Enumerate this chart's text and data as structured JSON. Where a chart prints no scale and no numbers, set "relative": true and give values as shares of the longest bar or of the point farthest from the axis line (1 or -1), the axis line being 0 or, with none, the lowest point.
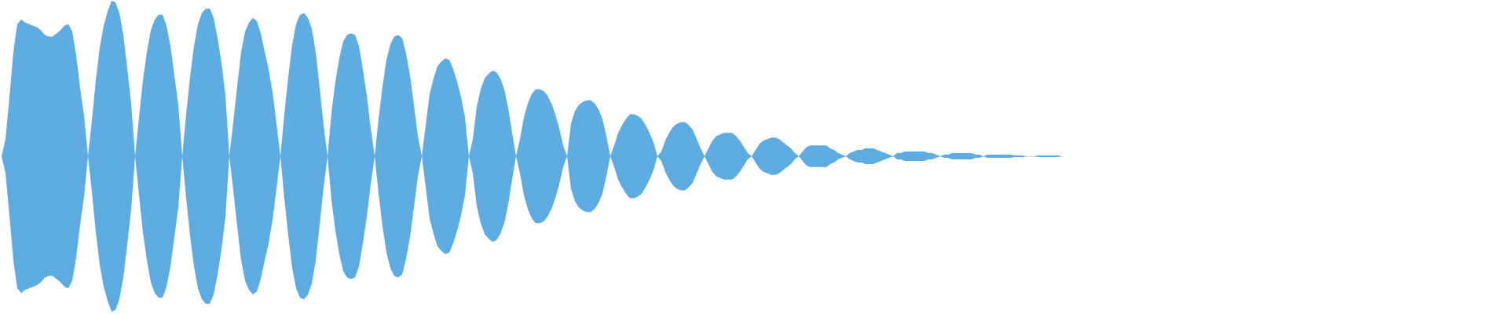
{
  "chart_data": {
    "type": "area",
    "relative": true,
    "categories": [
      null,
      null,
      null,
      null,
      null,
      null,
      null,
      null,
      null,
      null,
      null,
      null,
      null,
      null,
      null,
      null,
      null,
      null,
      null,
      null,
      null,
      null,
      null,
      null,
      null,
      null,
      null,
      null,
      null,
      null,
      null,
      null,
      null,
      null,
      null,
      null,
      null,
      null,
      null,
      null,
      null,
      null,
      null,
      null,
      null,
      null,
      null,
      null,
      null,
      null,
      null,
      null,
      null,
      null,
      null,
      null,
      null,
      null,
      null,
      null,
      null,
      null,
      null,
      null,
      null,
      null,
      null,
      null,
      null,
      null,
      null,
      null,
      null,
      null,
      null,
      null,
      null,
      null,
      null,
      null,
      null,
      null,
      null,
      null,
      null,
      null,
      null,
      null,
      null,
      null,
      null,
      null,
      null,
      null,
      null,
      null,
      null,
      null,
      null,
      null,
      null,
      null,
      null,
      null,
      null,
      null,
      null,
      null,
      null,
      null,
      null,
      null,
      null,
      null,
      null,
      null,
      null,
      null,
      null,
      null,
      null,
      null,
      null,
      null,
      null,
      null,
      null,
      null,
      null,
      null,
      null,
      null,
      null,
      null,
      null,
      null,
      null,
      null,
      null,
      null,
      null,
      null,
      null,
      null,
      null,
      null,
      null,
      null,
      null,
      null,
      null,
      null,
      null,
      null,
      null,
      null,
      null,
      null,
      null,
      null,
      null,
      null,
      null,
      null,
      null,
      null,
      null,
      null,
      null,
      null,
      null,
      null,
      null,
      null,
      null,
      null,
      null,
      null,
      null,
      null,
      null,
      null,
      null,
      null,
      null,
      null,
      null,
      null,
      null,
      null,
      null,
      null,
      null,
      null,
      null,
      null,
      null,
      null,
      null,
      null,
      null,
      null,
      null,
      null,
      null,
      null,
      null,
      null,
      null,
      null,
      null,
      null,
      null,
      null,
      null,
      null,
      null,
      null,
      null,
      null,
      null,
      null,
      null,
      null,
      null,
      null,
      null,
      null,
      null,
      null,
      null,
      null,
      null,
      null,
      null,
      null,
      null,
      null,
      null,
      null,
      null,
      null,
      null,
      null,
      null,
      null,
      null,
      null,
      null,
      null,
      null,
      null,
      null,
      null,
      null,
      null,
      null,
      null,
      null,
      null,
      null,
      null,
      null,
      null,
      null,
      null,
      null,
      null,
      null,
      null,
      null
    ],
    "series": [
      {
        "color": "#5dade2",
        "values": [
          0,
          0.11,
          0.38,
          0.67,
          0.85,
          0.88,
          0.86,
          0.85,
          0.84,
          0.83,
          0.81,
          0.78,
          0.77,
          0.77,
          0.79,
          0.81,
          0.84,
          0.85,
          0.8,
          0.65,
          0.44,
          0.26,
          0,
          0.23,
          0.49,
          0.7,
          0.84,
          0.93,
          1,
          0.99,
          0.92,
          0.78,
          0.57,
          0.34,
          0,
          0.25,
          0.49,
          0.67,
          0.81,
          0.88,
          0.91,
          0.91,
          0.84,
          0.71,
          0.52,
          0.33,
          0,
          0.27,
          0.51,
          0.71,
          0.85,
          0.92,
          0.95,
          0.95,
          0.89,
          0.76,
          0.6,
          0.39,
          0,
          0.22,
          0.45,
          0.67,
          0.8,
          0.86,
          0.89,
          0.87,
          0.79,
          0.67,
          0.56,
          0.41,
          0.21,
          0,
          0.27,
          0.51,
          0.72,
          0.85,
          0.91,
          0.92,
          0.89,
          0.82,
          0.67,
          0.44,
          0.2,
          0,
          0.28,
          0.48,
          0.63,
          0.74,
          0.78,
          0.79,
          0.78,
          0.71,
          0.56,
          0.39,
          0.18,
          0,
          0.24,
          0.45,
          0.62,
          0.72,
          0.77,
          0.78,
          0.76,
          0.66,
          0.52,
          0.33,
          0.13,
          0,
          0.2,
          0.4,
          0.5,
          0.58,
          0.61,
          0.63,
          0.62,
          0.56,
          0.48,
          0.38,
          0.25,
          0,
          0.11,
          0.32,
          0.43,
          0.5,
          0.53,
          0.55,
          0.54,
          0.5,
          0.43,
          0.31,
          0.15,
          0,
          0.11,
          0.25,
          0.34,
          0.4,
          0.43,
          0.43,
          0.42,
          0.39,
          0.34,
          0.27,
          0.18,
          0.07,
          0,
          0.21,
          0.29,
          0.33,
          0.35,
          0.36,
          0.36,
          0.34,
          0.3,
          0.24,
          0.13,
          0,
          0.07,
          0.15,
          0.2,
          0.24,
          0.27,
          0.27,
          0.26,
          0.24,
          0.2,
          0.15,
          0.09,
          0,
          0.03,
          0.1,
          0.15,
          0.19,
          0.21,
          0.22,
          0.22,
          0.2,
          0.17,
          0.11,
          0.05,
          0,
          0.05,
          0.1,
          0.13,
          0.14,
          0.15,
          0.15,
          0.15,
          0.13,
          0.1,
          0.06,
          0.02,
          0,
          0.04,
          0.08,
          0.1,
          0.11,
          0.12,
          0.12,
          0.11,
          0.09,
          0.07,
          0.05,
          0.02,
          0,
          0.03,
          0.06,
          0.07,
          0.07,
          0.07,
          0.07,
          0.07,
          0.05,
          0.04,
          0.02,
          0.01,
          0,
          0.02,
          0.03,
          0.04,
          0.04,
          0.05,
          0.05,
          0.05,
          0.04,
          0.03,
          0.02,
          0.01,
          0,
          0.02,
          0.02,
          0.03,
          0.03,
          0.03,
          0.03,
          0.03,
          0.03,
          0.02,
          0.02,
          0.01,
          0,
          0.01,
          0.01,
          0.02,
          0.02,
          0.02,
          0.02,
          0.02,
          0.02,
          0.01,
          0.01,
          0,
          0.01,
          0.01,
          0.01,
          0.01,
          0.01,
          0.01,
          0.01,
          0.005,
          0.005,
          0.005,
          0,
          0,
          0,
          0.005,
          0.005,
          0.005,
          0.005,
          0.005,
          0.005,
          0
        ]
      },
      {
        "color": "#5cace1",
        "values": [
          0,
          -0.11,
          -0.38,
          -0.67,
          -0.85,
          -0.88,
          -0.86,
          -0.85,
          -0.84,
          -0.83,
          -0.81,
          -0.78,
          -0.77,
          -0.77,
          -0.79,
          -0.81,
          -0.84,
          -0.85,
          -0.8,
          -0.65,
          -0.44,
          -0.26,
          0,
          -0.23,
          -0.49,
          -0.7,
          -0.84,
          -0.93,
          -1,
          -0.99,
          -0.92,
          -0.78,
          -0.57,
          -0.34,
          0,
          -0.25,
          -0.49,
          -0.67,
          -0.81,
          -0.88,
          -0.91,
          -0.91,
          -0.84,
          -0.71,
          -0.52,
          -0.33,
          0,
          -0.27,
          -0.51,
          -0.71,
          -0.85,
          -0.92,
          -0.95,
          -0.95,
          -0.89,
          -0.76,
          -0.6,
          -0.39,
          0,
          -0.22,
          -0.45,
          -0.67,
          -0.8,
          -0.86,
          -0.89,
          -0.87,
          -0.79,
          -0.67,
          -0.56,
          -0.41,
          -0.21,
          0,
          -0.27,
          -0.51,
          -0.72,
          -0.85,
          -0.91,
          -0.92,
          -0.89,
          -0.82,
          -0.67,
          -0.44,
          -0.2,
          0,
          -0.28,
          -0.48,
          -0.63,
          -0.74,
          -0.78,
          -0.79,
          -0.78,
          -0.71,
          -0.56,
          -0.39,
          -0.18,
          0,
          -0.24,
          -0.45,
          -0.62,
          -0.72,
          -0.77,
          -0.78,
          -0.76,
          -0.66,
          -0.52,
          -0.33,
          -0.13,
          0,
          -0.2,
          -0.4,
          -0.5,
          -0.58,
          -0.61,
          -0.63,
          -0.62,
          -0.56,
          -0.48,
          -0.38,
          -0.25,
          0,
          -0.11,
          -0.32,
          -0.43,
          -0.5,
          -0.53,
          -0.55,
          -0.54,
          -0.5,
          -0.43,
          -0.31,
          -0.15,
          0,
          -0.11,
          -0.25,
          -0.34,
          -0.4,
          -0.43,
          -0.43,
          -0.42,
          -0.39,
          -0.34,
          -0.27,
          -0.18,
          -0.07,
          0,
          -0.21,
          -0.29,
          -0.33,
          -0.35,
          -0.36,
          -0.36,
          -0.34,
          -0.3,
          -0.24,
          -0.13,
          0,
          -0.07,
          -0.15,
          -0.2,
          -0.24,
          -0.27,
          -0.27,
          -0.26,
          -0.24,
          -0.2,
          -0.15,
          -0.09,
          0,
          -0.03,
          -0.1,
          -0.15,
          -0.19,
          -0.21,
          -0.22,
          -0.22,
          -0.2,
          -0.17,
          -0.11,
          -0.05,
          0,
          -0.05,
          -0.1,
          -0.13,
          -0.14,
          -0.15,
          -0.15,
          -0.15,
          -0.13,
          -0.1,
          -0.06,
          -0.02,
          0,
          -0.04,
          -0.08,
          -0.1,
          -0.11,
          -0.12,
          -0.12,
          -0.11,
          -0.09,
          -0.07,
          -0.05,
          -0.02,
          0,
          -0.03,
          -0.06,
          -0.07,
          -0.07,
          -0.07,
          -0.07,
          -0.07,
          -0.05,
          -0.04,
          -0.02,
          -0.01,
          0,
          -0.02,
          -0.03,
          -0.04,
          -0.04,
          -0.05,
          -0.05,
          -0.05,
          -0.04,
          -0.03,
          -0.02,
          -0.01,
          0,
          -0.02,
          -0.02,
          -0.03,
          -0.03,
          -0.03,
          -0.03,
          -0.03,
          -0.03,
          -0.02,
          -0.02,
          -0.01,
          0,
          -0.01,
          -0.01,
          -0.02,
          -0.02,
          -0.02,
          -0.02,
          -0.02,
          -0.02,
          -0.01,
          -0.01,
          0,
          -0.01,
          -0.01,
          -0.01,
          -0.01,
          -0.01,
          -0.01,
          -0.01,
          -0.005,
          -0.005,
          -0.005,
          0,
          0,
          0,
          -0.005,
          -0.005,
          -0.005,
          -0.005,
          -0.005,
          -0.005,
          0
        ]
      }
    ]
  }
}
